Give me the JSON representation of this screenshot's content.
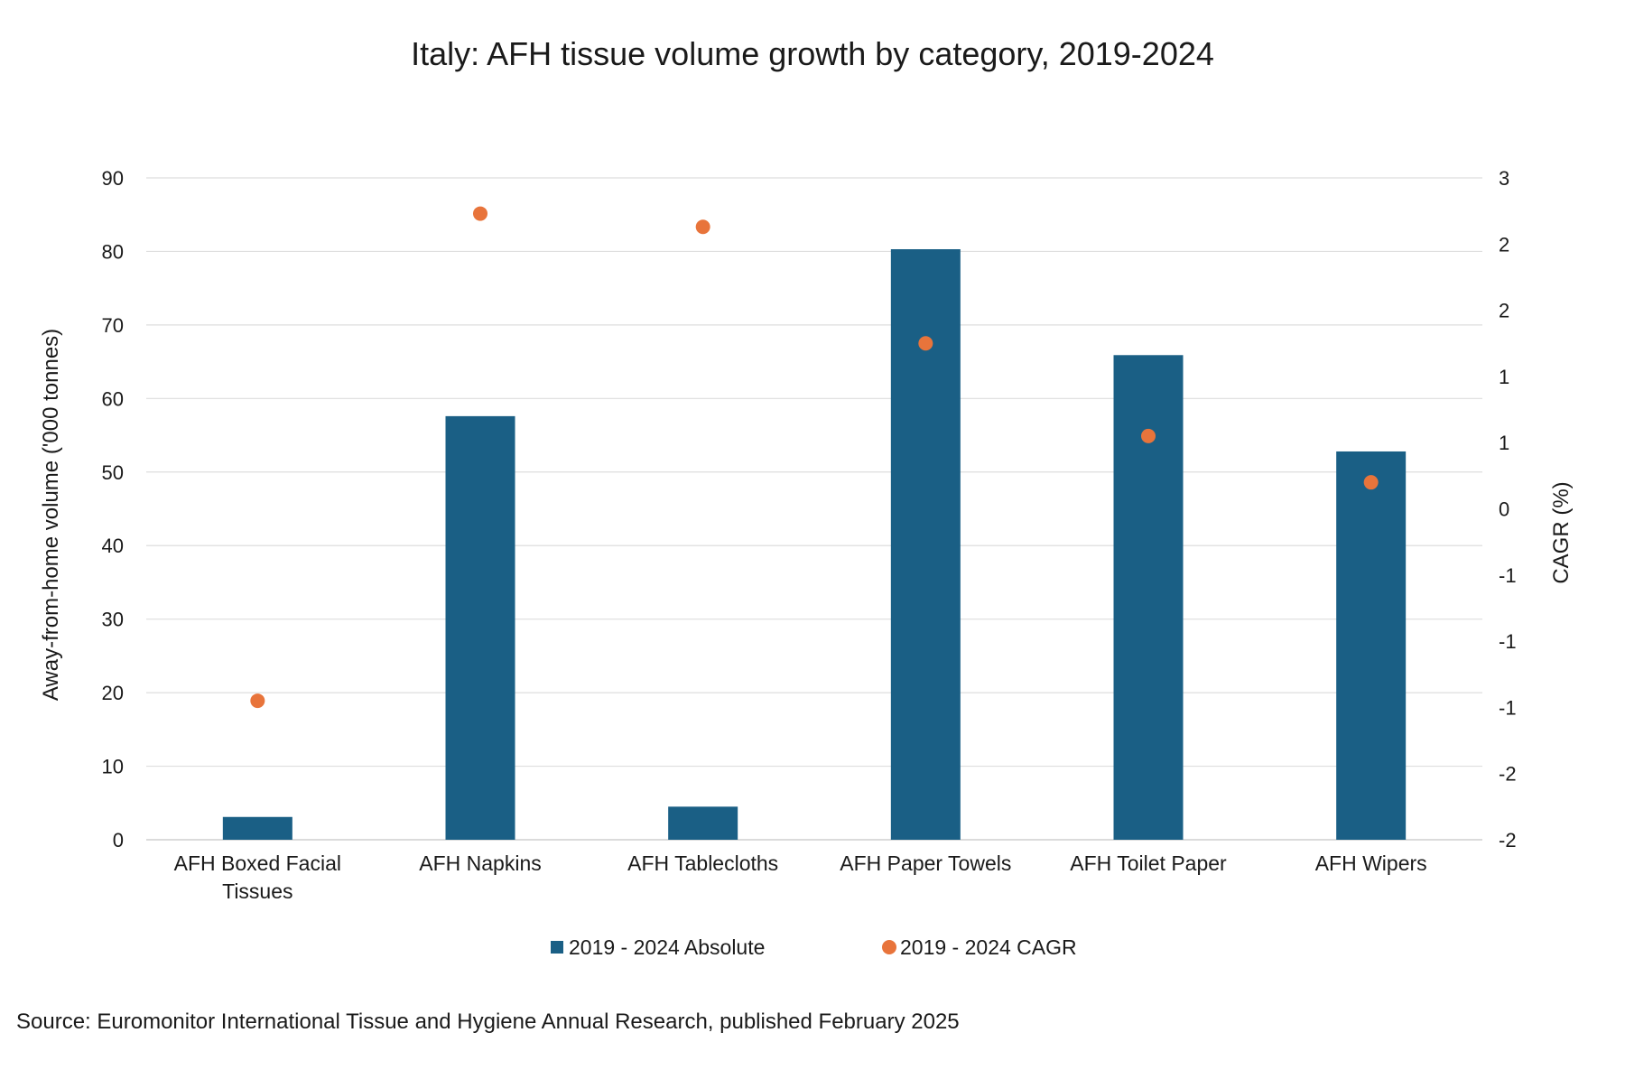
{
  "chart_data": {
    "type": "bar",
    "title": "Italy: AFH tissue volume growth by category, 2019-2024",
    "categories": [
      [
        "AFH Boxed Facial",
        "Tissues"
      ],
      [
        "AFH Napkins"
      ],
      [
        "AFH Tablecloths"
      ],
      [
        "AFH Paper Towels"
      ],
      [
        "AFH Toilet Paper"
      ],
      [
        "AFH Wipers"
      ]
    ],
    "series": [
      {
        "name": "2019 - 2024 Absolute",
        "type": "bar",
        "axis": "left",
        "color": "#1a5f85",
        "values": [
          3.1,
          57.6,
          4.5,
          80.3,
          65.9,
          52.8
        ]
      },
      {
        "name": "2019 - 2024 CAGR",
        "type": "scatter",
        "axis": "right",
        "color": "#e8743b",
        "values": [
          -1.45,
          2.23,
          2.13,
          1.25,
          0.55,
          0.2
        ]
      }
    ],
    "y_left": {
      "label": "Away-from-home volume ('000 tonnes)",
      "ylim": [
        0,
        90
      ],
      "ticks": [
        0,
        10,
        20,
        30,
        40,
        50,
        60,
        70,
        80,
        90
      ],
      "tick_labels": [
        "0",
        "10",
        "20",
        "30",
        "40",
        "50",
        "60",
        "70",
        "80",
        "90"
      ]
    },
    "y_right": {
      "label": "CAGR (%)",
      "ylim": [
        -2.5,
        2.5
      ],
      "ticks": [
        -2.5,
        -2,
        -1.5,
        -1,
        -0.5,
        0,
        0.5,
        1,
        1.5,
        2
      ],
      "tick_labels": [
        "-2",
        "-2",
        "-1",
        "-1",
        "-1",
        "0",
        "1",
        "1",
        "2",
        "2"
      ],
      "top_label": "3"
    },
    "grid": true,
    "legend_position": "bottom",
    "source": "Source: Euromonitor International Tissue and Hygiene Annual Research, published February 2025"
  }
}
